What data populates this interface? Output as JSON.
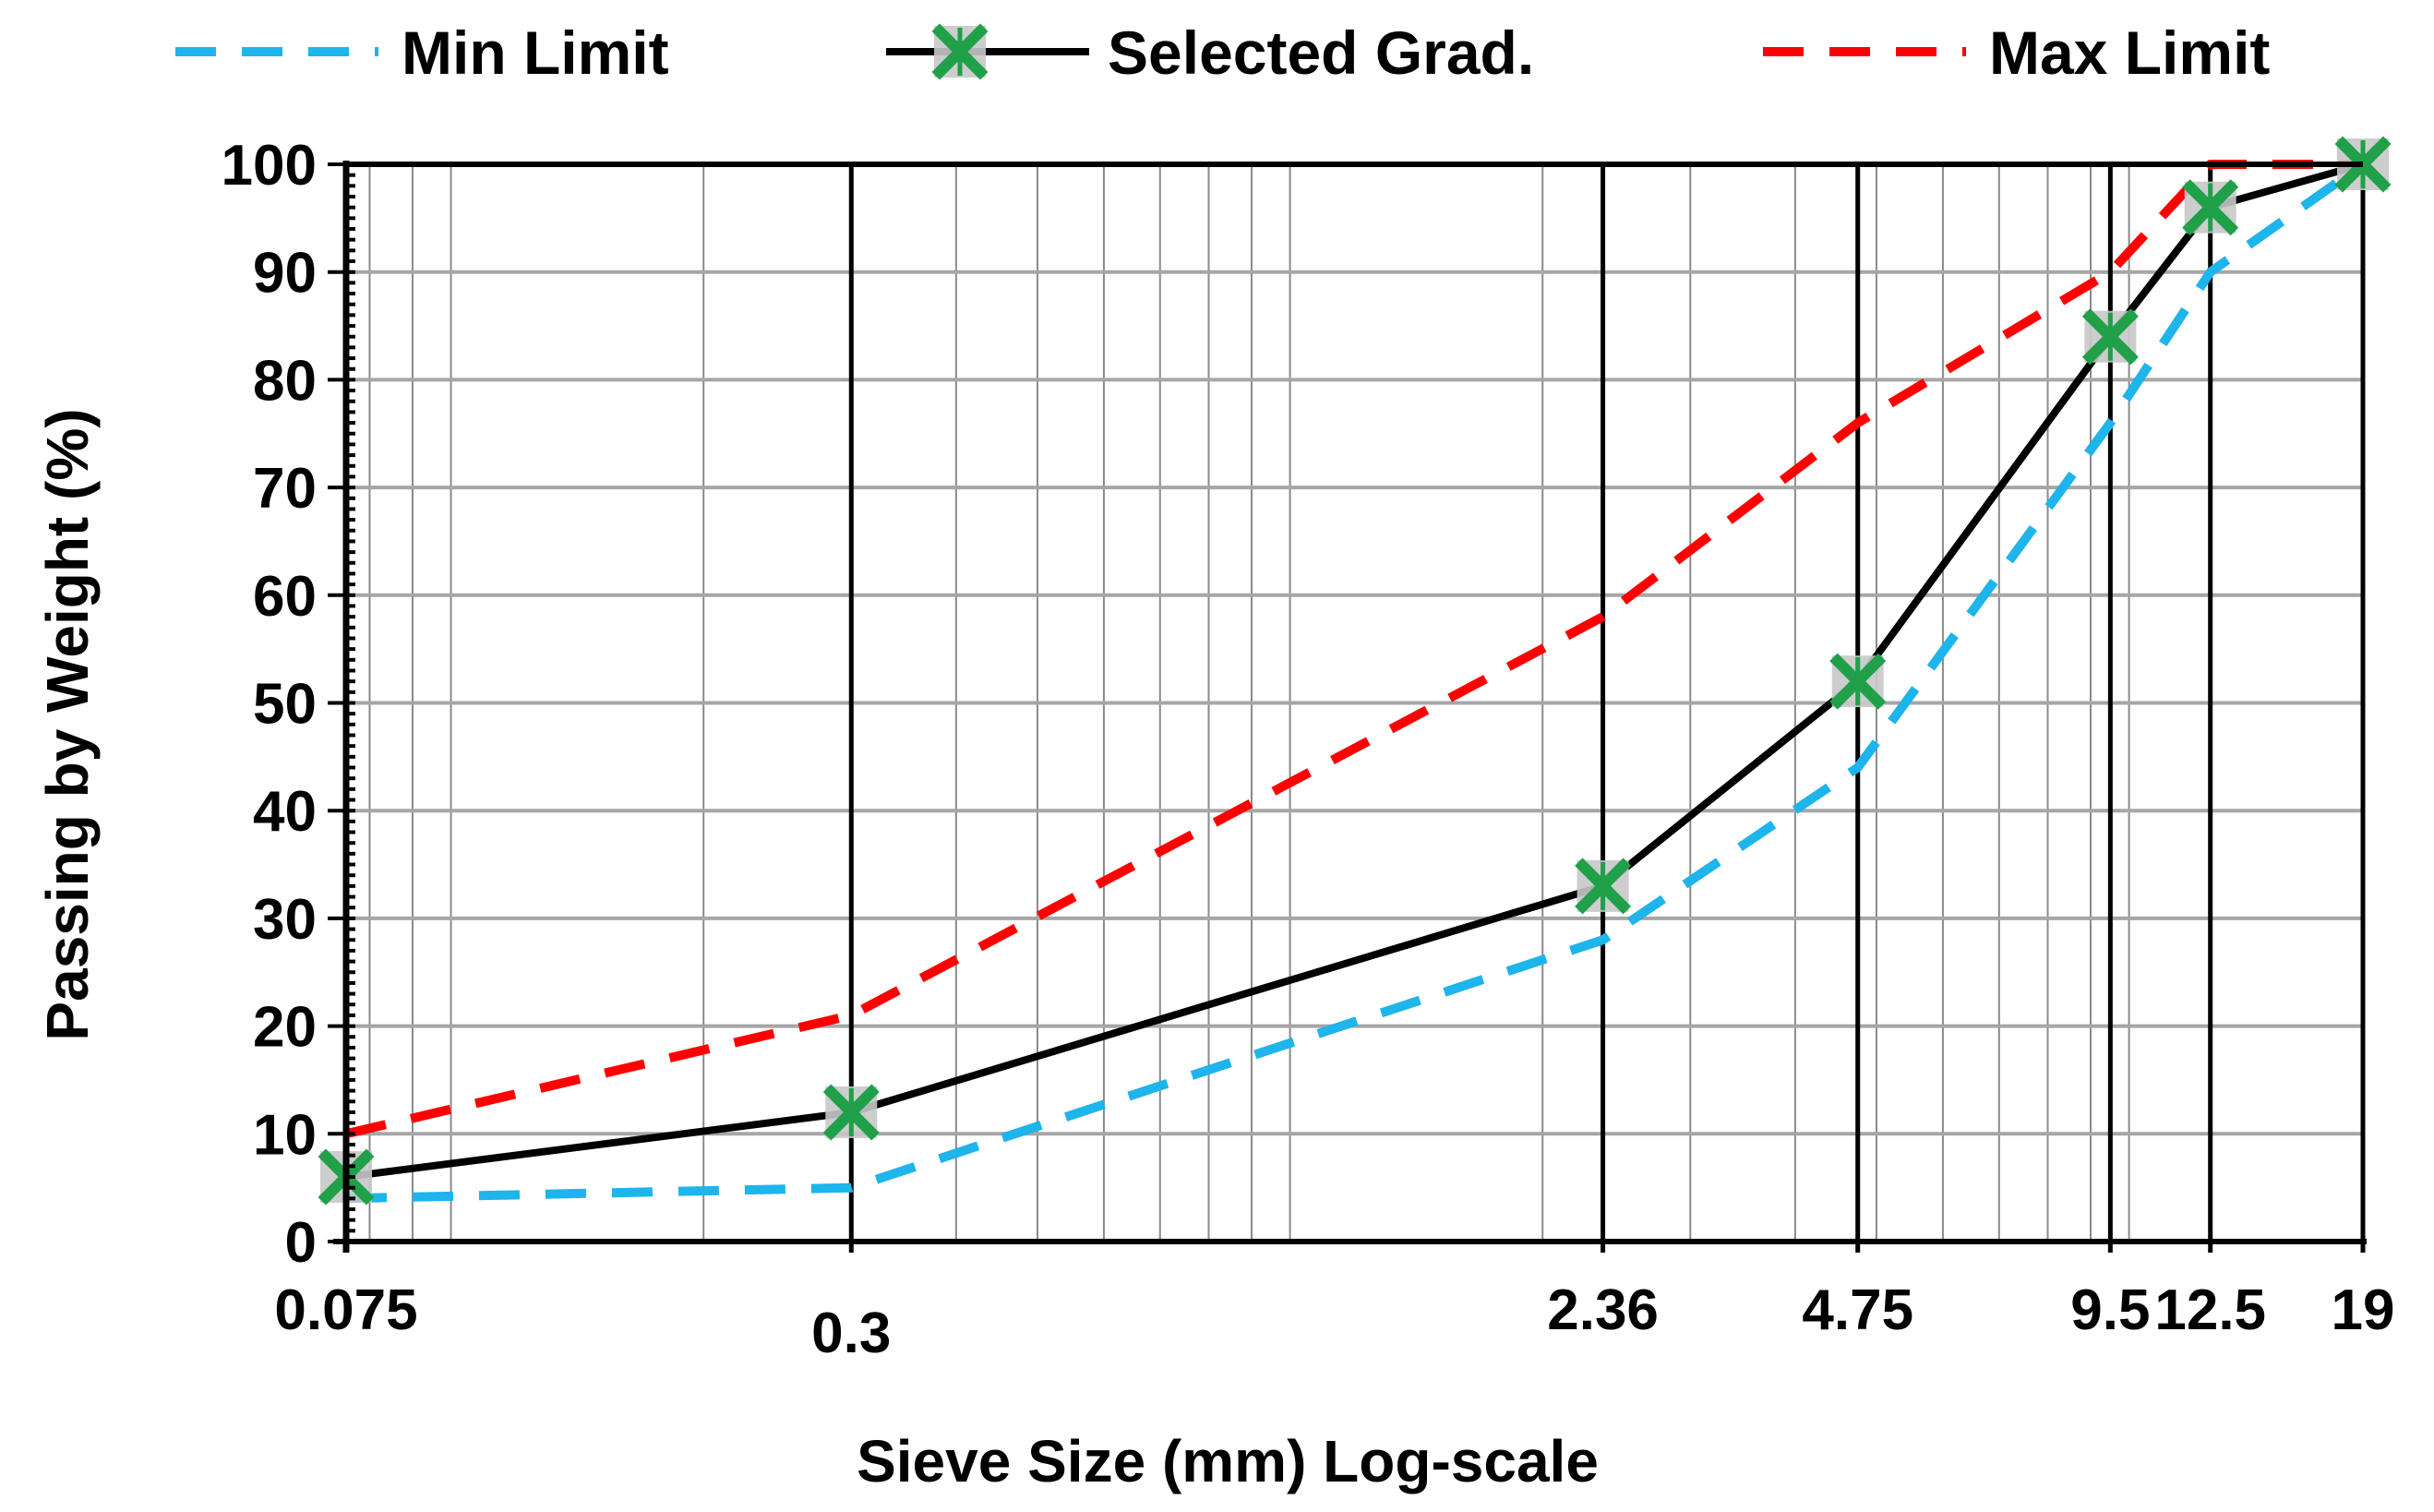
{
  "chart_data": {
    "type": "line",
    "title": "",
    "xlabel": "Sieve Size (mm) Log-scale",
    "ylabel": "Passing by Weight (%)",
    "x_scale": "log",
    "xlim": [
      0.075,
      19
    ],
    "ylim": [
      0,
      100
    ],
    "grid": true,
    "legend_position": "top",
    "x_tick_labels": [
      "0.075",
      "0.3",
      "2.36",
      "4.75",
      "9.5",
      "12.5",
      "19"
    ],
    "y_ticks": [
      0,
      10,
      20,
      30,
      40,
      50,
      60,
      70,
      80,
      90,
      100
    ],
    "sieves": [
      0.075,
      0.3,
      2.36,
      4.75,
      9.5,
      12.5,
      19
    ],
    "series": [
      {
        "name": "Min Limit",
        "style": "dashed",
        "color": "#1EB4EC",
        "x": [
          0.075,
          0.3,
          2.36,
          4.75,
          9.5,
          12.5,
          19
        ],
        "values": [
          4,
          5,
          28,
          44,
          76,
          90,
          100
        ]
      },
      {
        "name": "Selected Grad.",
        "style": "solid",
        "color": "#000000",
        "marker": "x",
        "marker_color": "#1FA049",
        "x": [
          0.075,
          0.3,
          2.36,
          4.75,
          9.5,
          12.5,
          19
        ],
        "values": [
          6,
          12,
          33,
          52,
          84,
          96,
          100
        ]
      },
      {
        "name": "Max Limit",
        "style": "dashed",
        "color": "#FF0000",
        "x": [
          0.075,
          0.3,
          2.36,
          4.75,
          9.5,
          12.5,
          19
        ],
        "values": [
          10,
          21,
          58,
          76,
          90,
          100,
          100
        ]
      }
    ]
  }
}
